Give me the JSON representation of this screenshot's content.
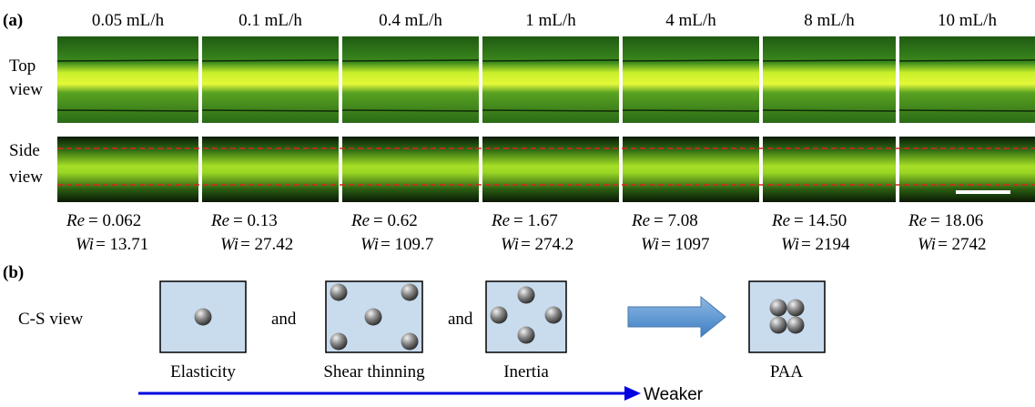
{
  "panel_a": {
    "label": "(a)",
    "row_labels": [
      [
        "Top",
        "view"
      ],
      [
        "Side",
        "view"
      ]
    ],
    "re_symbol": "Re",
    "wi_symbol": "Wi",
    "columns": [
      {
        "flow": "0.05 mL/h",
        "re": "= 0.062",
        "wi": "= 13.71"
      },
      {
        "flow": "0.1 mL/h",
        "re": "= 0.13",
        "wi": "= 27.42"
      },
      {
        "flow": "0.4 mL/h",
        "re": "= 0.62",
        "wi": "= 109.7"
      },
      {
        "flow": "1 mL/h",
        "re": "= 1.67",
        "wi": "= 274.2"
      },
      {
        "flow": "4 mL/h",
        "re": "= 7.08",
        "wi": "= 1097"
      },
      {
        "flow": "8 mL/h",
        "re": "= 14.50",
        "wi": "= 2194"
      },
      {
        "flow": "10 mL/h",
        "re": "= 18.06",
        "wi": "= 2742"
      }
    ]
  },
  "panel_b": {
    "label": "(b)",
    "row_label": "C-S view",
    "captions": [
      "Elasticity",
      "Shear thinning",
      "Inertia",
      "PAA"
    ],
    "connectors": [
      "and",
      "and"
    ],
    "arrow_label": "Weaker"
  }
}
